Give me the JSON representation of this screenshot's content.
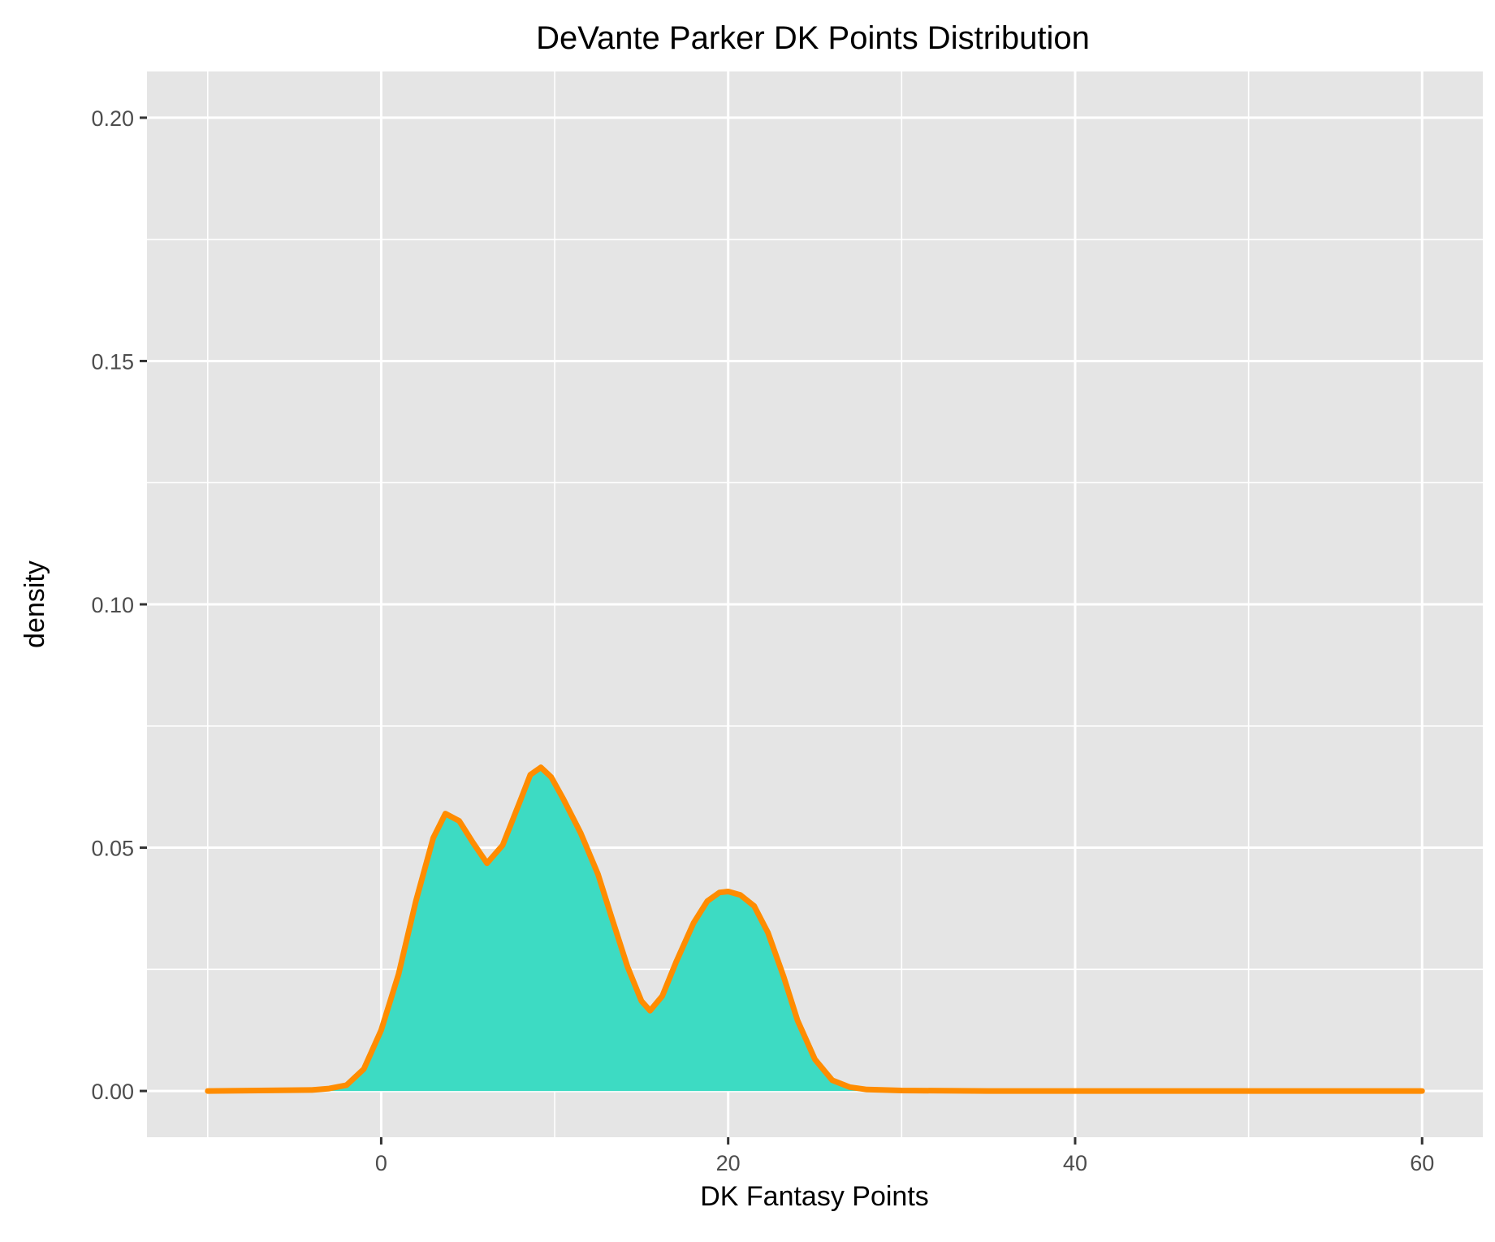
{
  "chart_data": {
    "type": "area",
    "title": "DeVante Parker DK Points Distribution",
    "xlabel": "DK Fantasy Points",
    "ylabel": "density",
    "xlim": [
      -13.5,
      63.5
    ],
    "ylim": [
      -0.0095,
      0.2095
    ],
    "x_ticks": [
      0,
      20,
      40,
      60
    ],
    "x_tick_labels": [
      "0",
      "20",
      "40",
      "60"
    ],
    "x_minor_ticks": [
      -10,
      10,
      30,
      50
    ],
    "y_ticks": [
      0,
      0.05,
      0.1,
      0.15,
      0.2
    ],
    "y_tick_labels": [
      "0.00",
      "0.05",
      "0.10",
      "0.15",
      "0.20"
    ],
    "y_minor_ticks": [
      0.025,
      0.075,
      0.125,
      0.175
    ],
    "grid": true,
    "legend": "none",
    "colors": {
      "panel_background": "#e5e5e5",
      "grid_line": "#ffffff",
      "fill": "#3ddbc3",
      "line": "#ff8c00",
      "tick_label": "#4d4d4d",
      "axis_tick": "#333333"
    },
    "series": [
      {
        "x": [
          -10,
          -4,
          -3,
          -2,
          -1,
          0,
          1,
          2,
          3,
          3.7,
          4.5,
          5.3,
          6.1,
          7,
          8,
          8.6,
          9.2,
          9.8,
          10.5,
          11.5,
          12.5,
          13.3,
          14.2,
          15,
          15.5,
          16.2,
          17,
          18,
          18.8,
          19.5,
          20,
          20.7,
          21.5,
          22.3,
          23.2,
          24,
          25,
          26,
          27,
          28,
          30,
          35,
          40,
          45,
          50,
          55,
          60
        ],
        "y": [
          0,
          0.0002,
          0.0005,
          0.0012,
          0.0045,
          0.0125,
          0.024,
          0.039,
          0.052,
          0.057,
          0.0555,
          0.051,
          0.0468,
          0.0505,
          0.0595,
          0.065,
          0.0665,
          0.0645,
          0.06,
          0.053,
          0.0445,
          0.0355,
          0.0255,
          0.0185,
          0.0165,
          0.0195,
          0.0265,
          0.0345,
          0.039,
          0.0408,
          0.041,
          0.0403,
          0.038,
          0.0325,
          0.0235,
          0.0145,
          0.0065,
          0.0022,
          0.0008,
          0.0003,
          0.0001,
          0,
          0,
          0,
          0,
          0,
          0
        ]
      }
    ]
  }
}
